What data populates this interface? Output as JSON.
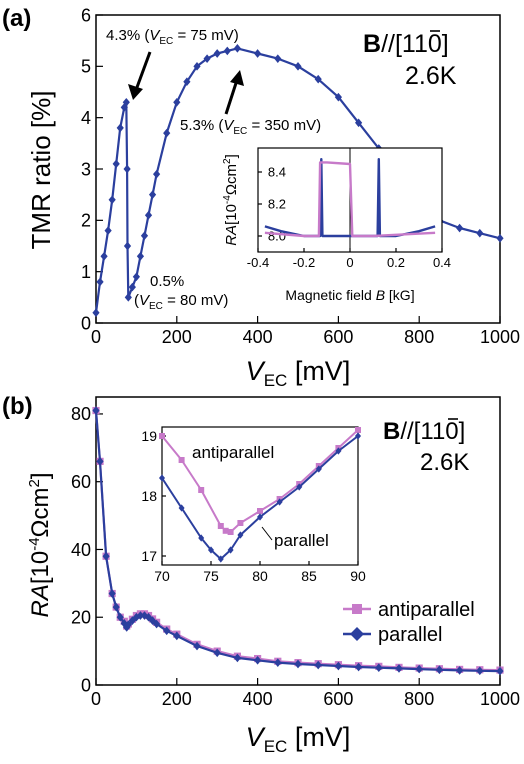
{
  "colors": {
    "blue": "#2b3f9e",
    "pink": "#c77ac9",
    "black": "#000000"
  },
  "panel_a": {
    "label": "(a)",
    "field_bold": "B",
    "field_text": "//[",
    "field_bar": "1",
    "field_rest": "10]",
    "temperature": "2.6K",
    "ann_peak1_main": "4.3% (",
    "ann_peak1_v": "V",
    "ann_peak1_sub": "EC",
    "ann_peak1_end": " = 75 mV)",
    "ann_peak2_main": "5.3% (",
    "ann_peak2_v": "V",
    "ann_peak2_sub": "EC",
    "ann_peak2_end": " = 350 mV)",
    "ann_min_line1": "0.5%",
    "ann_min_open": "(",
    "ann_min_v": "V",
    "ann_min_sub": "EC",
    "ann_min_end": " = 80 mV)",
    "ylabel": "TMR ratio [%]",
    "xlabel_v": "V",
    "xlabel_sub": "EC",
    "xlabel_unit": " [mV]",
    "inset_ylabel_ra": "RA",
    "inset_ylabel_unit": "[10",
    "inset_ylabel_exp": "-4",
    "inset_ylabel_rest": "Ωcm",
    "inset_ylabel_sq": "2",
    "inset_ylabel_close": "]",
    "inset_xlabel": "Magnetic field ",
    "inset_xlabel_b": "B",
    "inset_xlabel_unit": " [kG]"
  },
  "panel_b": {
    "label": "(b)",
    "field_bold": "B",
    "field_text": "//[",
    "field_bar": "1",
    "field_rest": "10]",
    "temperature": "2.6K",
    "ylabel_ra": "RA",
    "ylabel_unit": "[10",
    "ylabel_exp": "-4",
    "ylabel_rest": "Ωcm",
    "ylabel_sq": "2",
    "ylabel_close": "]",
    "xlabel_v": "V",
    "xlabel_sub": "EC",
    "xlabel_unit": " [mV]",
    "legend": [
      "antiparallel",
      "parallel"
    ],
    "inset_label_ap": "antiparallel",
    "inset_label_p": "parallel"
  },
  "chart_data": [
    {
      "id": "a-main",
      "type": "line",
      "ylabel": "TMR ratio [%]",
      "xlabel": "VEC [mV]",
      "xlim": [
        0,
        1000
      ],
      "ylim": [
        0,
        6
      ],
      "xticks": [
        0,
        200,
        400,
        600,
        800,
        1000
      ],
      "yticks": [
        0,
        1,
        2,
        3,
        4,
        5,
        6
      ],
      "series": [
        {
          "color": "#2b3f9e",
          "x": [
            0,
            10,
            20,
            30,
            40,
            50,
            60,
            70,
            75,
            77,
            78,
            80,
            90,
            100,
            110,
            120,
            130,
            140,
            150,
            175,
            200,
            225,
            250,
            275,
            300,
            325,
            350,
            400,
            450,
            500,
            550,
            600,
            650,
            700,
            750,
            800,
            850,
            900,
            950,
            1000
          ],
          "y": [
            0.2,
            0.8,
            1.3,
            1.8,
            2.4,
            3.1,
            3.8,
            4.2,
            4.3,
            3.0,
            1.5,
            0.5,
            0.7,
            0.9,
            1.3,
            1.7,
            2.1,
            2.5,
            2.9,
            3.7,
            4.3,
            4.7,
            5.0,
            5.15,
            5.25,
            5.3,
            5.35,
            5.25,
            5.15,
            5.0,
            4.75,
            4.4,
            3.9,
            3.4,
            2.8,
            2.4,
            2.0,
            1.85,
            1.75,
            1.65
          ]
        }
      ]
    },
    {
      "id": "a-inset",
      "type": "line",
      "ylabel": "RA[10-4Ωcm2]",
      "xlabel": "Magnetic field B [kG]",
      "xlim": [
        -0.4,
        0.4
      ],
      "ylim": [
        7.9,
        8.55
      ],
      "xticks": [
        -0.4,
        -0.2,
        0,
        0.2,
        0.4
      ],
      "yticks": [
        8.0,
        8.2,
        8.4
      ],
      "series": [
        {
          "color": "#2b3f9e",
          "x": [
            -0.37,
            -0.3,
            -0.2,
            -0.14,
            -0.13,
            -0.125,
            -0.12,
            -0.11,
            0,
            0.1,
            0.12,
            0.125,
            0.13,
            0.14,
            0.2,
            0.3,
            0.37
          ],
          "y": [
            8.06,
            8.03,
            8.0,
            8.0,
            8.0,
            8.48,
            8.0,
            8.0,
            8.0,
            8.0,
            8.0,
            8.48,
            8.0,
            8.0,
            8.0,
            8.03,
            8.06
          ]
        },
        {
          "color": "#c77ac9",
          "x": [
            -0.37,
            -0.2,
            -0.135,
            -0.13,
            -0.1,
            0,
            0.01,
            0.1,
            0.37
          ],
          "y": [
            8.02,
            8.0,
            8.0,
            8.46,
            8.46,
            8.45,
            8.0,
            8.0,
            8.02
          ]
        }
      ]
    },
    {
      "id": "b-main",
      "type": "line",
      "ylabel": "RA[10-4Ωcm2]",
      "xlabel": "VEC [mV]",
      "xlim": [
        0,
        1000
      ],
      "ylim": [
        0,
        85
      ],
      "xticks": [
        0,
        200,
        400,
        600,
        800,
        1000
      ],
      "yticks": [
        0,
        20,
        40,
        60,
        80
      ],
      "series": [
        {
          "name": "antiparallel",
          "color": "#c77ac9",
          "x": [
            0,
            10,
            25,
            40,
            50,
            60,
            70,
            76,
            80,
            90,
            100,
            110,
            120,
            130,
            140,
            150,
            175,
            200,
            250,
            300,
            350,
            400,
            450,
            500,
            550,
            600,
            650,
            700,
            750,
            800,
            850,
            900,
            950,
            1000
          ],
          "y": [
            81,
            66,
            38,
            27,
            23,
            20,
            18.8,
            17.4,
            18,
            19.4,
            20.5,
            21,
            21,
            20.5,
            19.5,
            18.5,
            16.5,
            15,
            12,
            10,
            8.5,
            7.8,
            7,
            6.6,
            6.3,
            6,
            5.7,
            5.5,
            5.2,
            5,
            4.8,
            4.6,
            4.5,
            4.4
          ]
        },
        {
          "name": "parallel",
          "color": "#2b3f9e",
          "x": [
            0,
            10,
            25,
            40,
            50,
            60,
            70,
            76,
            80,
            90,
            100,
            110,
            120,
            130,
            140,
            150,
            175,
            200,
            250,
            300,
            350,
            400,
            450,
            500,
            550,
            600,
            650,
            700,
            750,
            800,
            850,
            900,
            950,
            1000
          ],
          "y": [
            81,
            66,
            38,
            27,
            23,
            20,
            18.2,
            17,
            17.8,
            19,
            20,
            20.5,
            20.5,
            20,
            19,
            18,
            16,
            14.5,
            11.5,
            9.5,
            8,
            7.3,
            6.6,
            6.2,
            5.9,
            5.6,
            5.3,
            5.1,
            4.9,
            4.7,
            4.5,
            4.3,
            4.2,
            4.1
          ]
        }
      ]
    },
    {
      "id": "b-inset",
      "type": "line",
      "xlim": [
        70,
        90
      ],
      "ylim": [
        16.85,
        19.15
      ],
      "xticks": [
        70,
        75,
        80,
        85,
        90
      ],
      "yticks": [
        17,
        18,
        19
      ],
      "series": [
        {
          "name": "antiparallel",
          "color": "#c77ac9",
          "x": [
            70,
            72,
            74,
            76,
            76.5,
            77,
            78,
            80,
            82,
            84,
            86,
            88,
            90
          ],
          "y": [
            19.0,
            18.6,
            18.1,
            17.5,
            17.42,
            17.4,
            17.55,
            17.75,
            17.95,
            18.2,
            18.5,
            18.8,
            19.1
          ]
        },
        {
          "name": "parallel",
          "color": "#2b3f9e",
          "x": [
            70,
            72,
            74,
            75,
            76,
            77,
            78,
            80,
            82,
            84,
            86,
            88,
            90
          ],
          "y": [
            18.3,
            17.8,
            17.3,
            17.1,
            16.95,
            17.1,
            17.35,
            17.65,
            17.9,
            18.15,
            18.45,
            18.75,
            19.0
          ]
        }
      ]
    }
  ]
}
